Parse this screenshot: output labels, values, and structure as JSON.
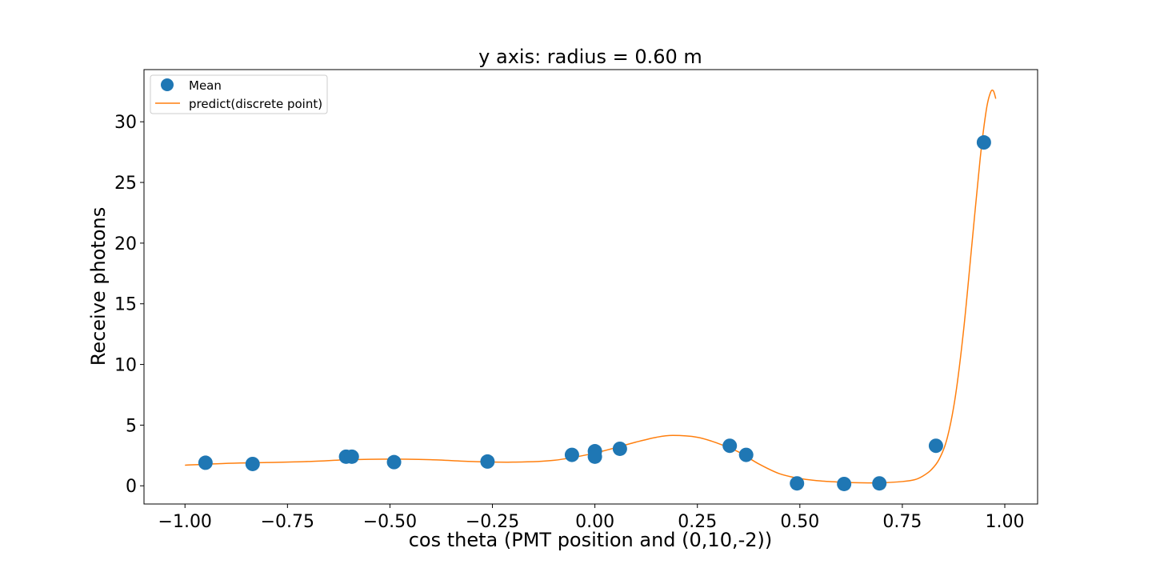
{
  "chart_data": {
    "type": "scatter",
    "title": "y axis: radius = 0.60 m",
    "xlabel": "cos theta (PMT position and (0,10,-2))",
    "ylabel": "Receive photons",
    "xlim": [
      -1.1,
      1.08
    ],
    "ylim": [
      -1.5,
      34.3
    ],
    "xticks": [
      -1.0,
      -0.75,
      -0.5,
      -0.25,
      0.0,
      0.25,
      0.5,
      0.75,
      1.0
    ],
    "xtick_labels": [
      "−1.00",
      "−0.75",
      "−0.50",
      "−0.25",
      "0.00",
      "0.25",
      "0.50",
      "0.75",
      "1.00"
    ],
    "yticks": [
      0,
      5,
      10,
      15,
      20,
      25,
      30
    ],
    "ytick_labels": [
      "0",
      "5",
      "10",
      "15",
      "20",
      "25",
      "30"
    ],
    "grid": false,
    "legend_position": "top-left",
    "series": [
      {
        "name": "Mean",
        "kind": "scatter",
        "color": "#1f77b4",
        "points": [
          [
            -0.95,
            1.9
          ],
          [
            -0.835,
            1.8
          ],
          [
            -0.607,
            2.4
          ],
          [
            -0.593,
            2.4
          ],
          [
            -0.49,
            1.95
          ],
          [
            -0.262,
            2.0
          ],
          [
            -0.056,
            2.55
          ],
          [
            0.0,
            2.85
          ],
          [
            0.0,
            2.4
          ],
          [
            0.061,
            3.05
          ],
          [
            0.329,
            3.3
          ],
          [
            0.369,
            2.55
          ],
          [
            0.493,
            0.2
          ],
          [
            0.608,
            0.15
          ],
          [
            0.694,
            0.2
          ],
          [
            0.832,
            3.3
          ],
          [
            0.949,
            28.3
          ]
        ]
      },
      {
        "name": "predict(discrete point)",
        "kind": "line",
        "color": "#ff7f0e",
        "points": [
          [
            -1.0,
            1.7
          ],
          [
            -0.9,
            1.85
          ],
          [
            -0.8,
            1.92
          ],
          [
            -0.7,
            2.0
          ],
          [
            -0.6,
            2.15
          ],
          [
            -0.5,
            2.2
          ],
          [
            -0.4,
            2.15
          ],
          [
            -0.3,
            2.0
          ],
          [
            -0.2,
            1.95
          ],
          [
            -0.1,
            2.1
          ],
          [
            0.0,
            2.7
          ],
          [
            0.1,
            3.6
          ],
          [
            0.15,
            4.0
          ],
          [
            0.19,
            4.15
          ],
          [
            0.25,
            4.0
          ],
          [
            0.3,
            3.5
          ],
          [
            0.35,
            2.8
          ],
          [
            0.4,
            1.8
          ],
          [
            0.45,
            1.0
          ],
          [
            0.5,
            0.6
          ],
          [
            0.55,
            0.4
          ],
          [
            0.6,
            0.3
          ],
          [
            0.65,
            0.25
          ],
          [
            0.7,
            0.25
          ],
          [
            0.75,
            0.35
          ],
          [
            0.78,
            0.5
          ],
          [
            0.8,
            0.8
          ],
          [
            0.82,
            1.3
          ],
          [
            0.84,
            2.2
          ],
          [
            0.86,
            4.0
          ],
          [
            0.88,
            7.5
          ],
          [
            0.9,
            13.0
          ],
          [
            0.92,
            20.0
          ],
          [
            0.94,
            27.0
          ],
          [
            0.955,
            31.0
          ],
          [
            0.965,
            32.4
          ],
          [
            0.972,
            32.55
          ],
          [
            0.978,
            31.9
          ]
        ]
      }
    ]
  }
}
